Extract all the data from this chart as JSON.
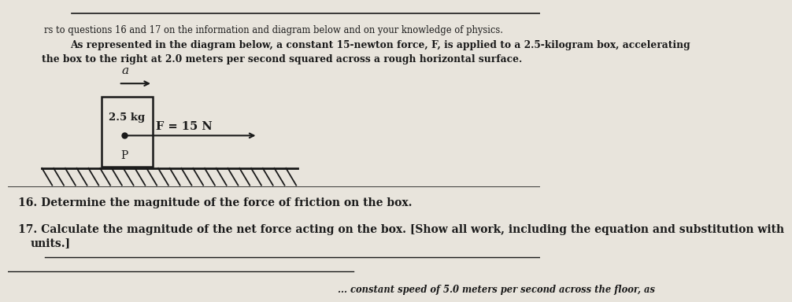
{
  "background_color": "#e8e4dc",
  "text_color": "#1a1a1a",
  "title_line": "rs to questions 16 and 17 on the information and diagram below and on your knowledge of physics.",
  "para_line1": "As represented in the diagram below, a constant 15-newton force, F, is applied to a 2.5-kilogram box, accelerating",
  "para_line2": "the box to the right at 2.0 meters per second squared across a rough horizontal surface.",
  "box_label": "2.5 kg",
  "force_label": "F = 15 N",
  "point_label": "P",
  "accel_label": "a",
  "question16": "16. Determine the magnitude of the force of friction on the box.",
  "question17_line1": "17. Calculate the magnitude of the net force acting on the box. [Show all work, including the equation and substitution with",
  "question17_line2": "    units.]",
  "bottom_text": "constant speed of 5.0 meters per second across the floor, as"
}
